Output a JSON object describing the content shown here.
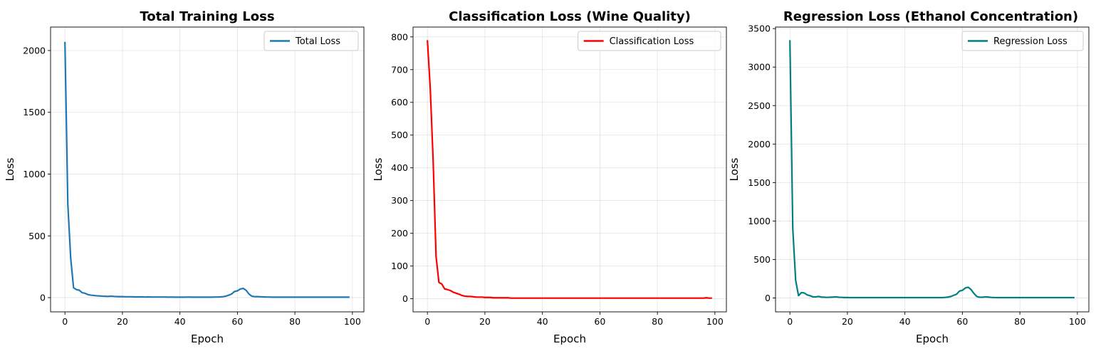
{
  "chart_data": [
    {
      "type": "line",
      "title": "Total Training Loss",
      "xlabel": "Epoch",
      "ylabel": "Loss",
      "xlim": [
        -5,
        104
      ],
      "ylim": [
        -115,
        2190
      ],
      "xticks": [
        0,
        20,
        40,
        60,
        80,
        100
      ],
      "yticks": [
        0,
        500,
        1000,
        1500,
        2000
      ],
      "grid": true,
      "legend_position": "top-right",
      "series": [
        {
          "name": "Total Loss",
          "color": "#1f77b4",
          "x": [
            0,
            1,
            2,
            3,
            4,
            5,
            6,
            7,
            8,
            9,
            10,
            11,
            12,
            13,
            14,
            15,
            16,
            17,
            18,
            19,
            20,
            21,
            22,
            23,
            24,
            25,
            26,
            27,
            28,
            29,
            30,
            31,
            32,
            33,
            34,
            35,
            36,
            37,
            38,
            39,
            40,
            41,
            42,
            43,
            44,
            45,
            46,
            47,
            48,
            49,
            50,
            51,
            52,
            53,
            54,
            55,
            56,
            57,
            58,
            59,
            60,
            61,
            62,
            63,
            64,
            65,
            66,
            67,
            68,
            69,
            70,
            71,
            72,
            73,
            74,
            75,
            76,
            77,
            78,
            79,
            80,
            81,
            82,
            83,
            84,
            85,
            86,
            87,
            88,
            89,
            90,
            91,
            92,
            93,
            94,
            95,
            96,
            97,
            98,
            99
          ],
          "y": [
            2070,
            760,
            320,
            80,
            65,
            60,
            40,
            35,
            25,
            20,
            18,
            15,
            14,
            12,
            11,
            10,
            12,
            10,
            9,
            8,
            8,
            7,
            7,
            7,
            6,
            6,
            6,
            6,
            5,
            6,
            5,
            5,
            5,
            5,
            5,
            5,
            4,
            5,
            4,
            4,
            4,
            4,
            4,
            5,
            4,
            4,
            4,
            4,
            4,
            4,
            4,
            4,
            5,
            5,
            6,
            8,
            12,
            20,
            30,
            50,
            55,
            70,
            75,
            60,
            30,
            12,
            8,
            8,
            7,
            6,
            5,
            5,
            4,
            4,
            4,
            4,
            4,
            4,
            4,
            4,
            4,
            4,
            4,
            4,
            4,
            4,
            4,
            4,
            4,
            4,
            4,
            4,
            4,
            4,
            4,
            4,
            4,
            4,
            4,
            4
          ]
        }
      ]
    },
    {
      "type": "line",
      "title": "Classification Loss (Wine Quality)",
      "xlabel": "Epoch",
      "ylabel": "Loss",
      "xlim": [
        -5,
        104
      ],
      "ylim": [
        -40,
        830
      ],
      "xticks": [
        0,
        20,
        40,
        60,
        80,
        100
      ],
      "yticks": [
        0,
        100,
        200,
        300,
        400,
        500,
        600,
        700,
        800
      ],
      "grid": true,
      "legend_position": "top-right",
      "series": [
        {
          "name": "Classification Loss",
          "color": "#ff0000",
          "x": [
            0,
            1,
            2,
            3,
            4,
            5,
            6,
            7,
            8,
            9,
            10,
            11,
            12,
            13,
            14,
            15,
            16,
            17,
            18,
            19,
            20,
            21,
            22,
            23,
            24,
            25,
            26,
            27,
            28,
            29,
            30,
            31,
            32,
            33,
            34,
            35,
            36,
            37,
            38,
            39,
            40,
            41,
            42,
            43,
            44,
            45,
            46,
            47,
            48,
            49,
            50,
            51,
            52,
            53,
            54,
            55,
            56,
            57,
            58,
            59,
            60,
            61,
            62,
            63,
            64,
            65,
            66,
            67,
            68,
            69,
            70,
            71,
            72,
            73,
            74,
            75,
            76,
            77,
            78,
            79,
            80,
            81,
            82,
            83,
            84,
            85,
            86,
            87,
            88,
            89,
            90,
            91,
            92,
            93,
            94,
            95,
            96,
            97,
            98,
            99
          ],
          "y": [
            790,
            640,
            420,
            130,
            50,
            45,
            30,
            28,
            25,
            20,
            17,
            14,
            10,
            8,
            7,
            7,
            6,
            5,
            5,
            5,
            4,
            4,
            4,
            3,
            3,
            3,
            3,
            3,
            3,
            2,
            2,
            2,
            2,
            2,
            2,
            2,
            2,
            2,
            2,
            2,
            2,
            2,
            2,
            2,
            2,
            2,
            2,
            2,
            2,
            2,
            2,
            2,
            2,
            2,
            2,
            2,
            2,
            2,
            2,
            2,
            2,
            2,
            2,
            2,
            2,
            2,
            2,
            2,
            2,
            2,
            2,
            2,
            2,
            2,
            2,
            2,
            2,
            2,
            2,
            2,
            2,
            2,
            2,
            2,
            2,
            2,
            2,
            2,
            2,
            2,
            2,
            2,
            2,
            2,
            2,
            2,
            2,
            3,
            2,
            2
          ]
        }
      ]
    },
    {
      "type": "line",
      "title": "Regression Loss (Ethanol Concentration)",
      "xlabel": "Epoch",
      "ylabel": "Loss",
      "xlim": [
        -5,
        104
      ],
      "ylim": [
        -180,
        3520
      ],
      "xticks": [
        0,
        20,
        40,
        60,
        80,
        100
      ],
      "yticks": [
        0,
        500,
        1000,
        1500,
        2000,
        2500,
        3000,
        3500
      ],
      "grid": true,
      "legend_position": "top-right",
      "series": [
        {
          "name": "Regression Loss",
          "color": "#008080",
          "x": [
            0,
            1,
            2,
            3,
            4,
            5,
            6,
            7,
            8,
            9,
            10,
            11,
            12,
            13,
            14,
            15,
            16,
            17,
            18,
            19,
            20,
            21,
            22,
            23,
            24,
            25,
            26,
            27,
            28,
            29,
            30,
            31,
            32,
            33,
            34,
            35,
            36,
            37,
            38,
            39,
            40,
            41,
            42,
            43,
            44,
            45,
            46,
            47,
            48,
            49,
            50,
            51,
            52,
            53,
            54,
            55,
            56,
            57,
            58,
            59,
            60,
            61,
            62,
            63,
            64,
            65,
            66,
            67,
            68,
            69,
            70,
            71,
            72,
            73,
            74,
            75,
            76,
            77,
            78,
            79,
            80,
            81,
            82,
            83,
            84,
            85,
            86,
            87,
            88,
            89,
            90,
            91,
            92,
            93,
            94,
            95,
            96,
            97,
            98,
            99
          ],
          "y": [
            3350,
            900,
            230,
            30,
            70,
            65,
            40,
            30,
            15,
            15,
            20,
            12,
            10,
            8,
            10,
            12,
            15,
            10,
            8,
            6,
            6,
            5,
            5,
            5,
            5,
            5,
            5,
            5,
            5,
            5,
            5,
            5,
            5,
            5,
            5,
            5,
            5,
            5,
            5,
            5,
            5,
            5,
            5,
            5,
            5,
            5,
            5,
            5,
            5,
            5,
            5,
            5,
            5,
            5,
            8,
            12,
            20,
            35,
            50,
            90,
            100,
            130,
            140,
            110,
            60,
            20,
            10,
            10,
            15,
            12,
            8,
            6,
            5,
            5,
            5,
            5,
            5,
            5,
            5,
            5,
            5,
            5,
            5,
            5,
            5,
            5,
            5,
            5,
            5,
            5,
            5,
            5,
            5,
            5,
            5,
            5,
            5,
            5,
            5,
            5
          ]
        }
      ]
    }
  ]
}
